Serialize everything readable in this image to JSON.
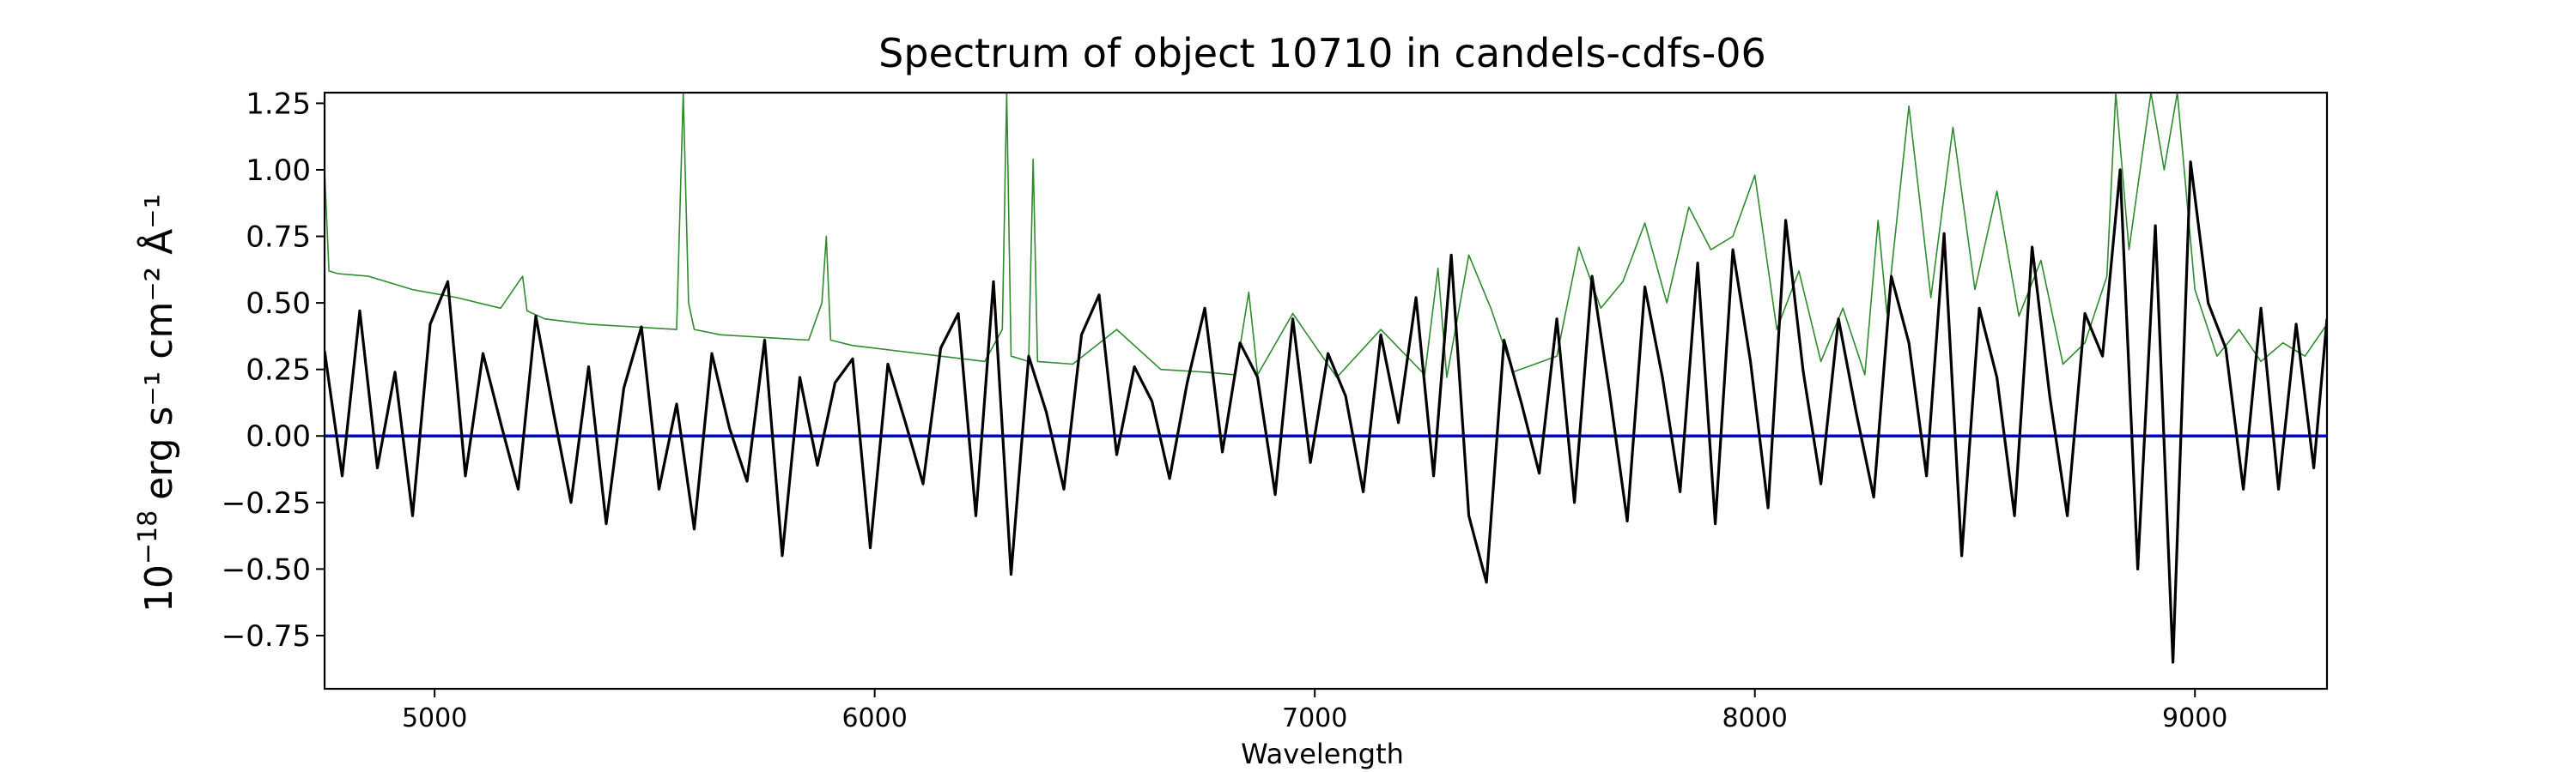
{
  "chart_data": {
    "type": "line",
    "title": "Spectrum of object 10710 in candels-cdfs-06",
    "xlabel": "Wavelength",
    "ylabel_base": "10",
    "ylabel_exp": "−18",
    "ylabel_units": "erg s⁻¹ cm⁻² Å⁻¹",
    "xlim": [
      4750,
      9300
    ],
    "ylim": [
      -0.95,
      1.29
    ],
    "xticks": [
      5000,
      6000,
      7000,
      8000,
      9000
    ],
    "xtick_labels": [
      "5000",
      "6000",
      "7000",
      "8000",
      "9000"
    ],
    "yticks": [
      -0.75,
      -0.5,
      -0.25,
      0.0,
      0.25,
      0.5,
      0.75,
      1.0,
      1.25
    ],
    "ytick_labels": [
      "−0.75",
      "−0.50",
      "−0.25",
      "0.00",
      "0.25",
      "0.50",
      "0.75",
      "1.00",
      "1.25"
    ],
    "grid": false,
    "legend": "none",
    "series": [
      {
        "role": "flux",
        "color": "#000000",
        "x": [
          4750,
          4790,
          4830,
          4870,
          4910,
          4950,
          4990,
          5030,
          5070,
          5110,
          5150,
          5190,
          5230,
          5270,
          5310,
          5350,
          5390,
          5430,
          5470,
          5510,
          5550,
          5590,
          5630,
          5670,
          5710,
          5750,
          5790,
          5830,
          5870,
          5910,
          5950,
          5990,
          6030,
          6070,
          6110,
          6150,
          6190,
          6230,
          6270,
          6310,
          6350,
          6390,
          6430,
          6470,
          6510,
          6550,
          6590,
          6630,
          6670,
          6710,
          6750,
          6790,
          6830,
          6870,
          6910,
          6950,
          6990,
          7030,
          7070,
          7110,
          7150,
          7190,
          7230,
          7270,
          7310,
          7350,
          7390,
          7430,
          7470,
          7510,
          7550,
          7590,
          7630,
          7670,
          7710,
          7750,
          7790,
          7830,
          7870,
          7910,
          7950,
          7990,
          8030,
          8070,
          8110,
          8150,
          8190,
          8230,
          8270,
          8310,
          8350,
          8390,
          8430,
          8470,
          8510,
          8550,
          8590,
          8630,
          8670,
          8710,
          8750,
          8790,
          8830,
          8870,
          8910,
          8950,
          8990,
          9030,
          9070,
          9110,
          9150,
          9190,
          9230,
          9270,
          9300
        ],
        "y": [
          0.32,
          -0.15,
          0.47,
          -0.12,
          0.24,
          -0.3,
          0.42,
          0.58,
          -0.15,
          0.31,
          0.05,
          -0.2,
          0.45,
          0.09,
          -0.25,
          0.26,
          -0.33,
          0.18,
          0.41,
          -0.2,
          0.12,
          -0.35,
          0.31,
          0.03,
          -0.17,
          0.36,
          -0.45,
          0.22,
          -0.11,
          0.2,
          0.29,
          -0.42,
          0.27,
          0.05,
          -0.18,
          0.33,
          0.46,
          -0.3,
          0.58,
          -0.52,
          0.3,
          0.09,
          -0.2,
          0.38,
          0.53,
          -0.07,
          0.26,
          0.13,
          -0.16,
          0.2,
          0.48,
          -0.06,
          0.35,
          0.22,
          -0.22,
          0.44,
          -0.1,
          0.31,
          0.15,
          -0.21,
          0.38,
          0.05,
          0.52,
          -0.15,
          0.68,
          -0.3,
          -0.55,
          0.36,
          0.12,
          -0.14,
          0.44,
          -0.25,
          0.6,
          0.16,
          -0.32,
          0.56,
          0.22,
          -0.21,
          0.65,
          -0.33,
          0.7,
          0.28,
          -0.27,
          0.81,
          0.24,
          -0.18,
          0.44,
          0.09,
          -0.23,
          0.6,
          0.35,
          -0.15,
          0.76,
          -0.45,
          0.48,
          0.22,
          -0.3,
          0.71,
          0.15,
          -0.3,
          0.46,
          0.3,
          1.0,
          -0.5,
          0.79,
          -0.85,
          1.03,
          0.5,
          0.33,
          -0.2,
          0.48,
          -0.2,
          0.42,
          -0.12,
          0.44
        ]
      },
      {
        "role": "error",
        "color": "#2e8b2e",
        "x": [
          4750,
          4760,
          4780,
          4850,
          4950,
          5050,
          5150,
          5200,
          5210,
          5250,
          5350,
          5450,
          5550,
          5565,
          5577,
          5590,
          5650,
          5750,
          5850,
          5880,
          5890,
          5900,
          5950,
          6050,
          6150,
          6250,
          6290,
          6300,
          6310,
          6350,
          6360,
          6370,
          6450,
          6550,
          6650,
          6750,
          6820,
          6850,
          6870,
          6950,
          7050,
          7150,
          7250,
          7280,
          7300,
          7350,
          7400,
          7450,
          7550,
          7600,
          7650,
          7700,
          7750,
          7800,
          7850,
          7900,
          7950,
          8000,
          8050,
          8100,
          8150,
          8200,
          8250,
          8280,
          8300,
          8350,
          8400,
          8450,
          8500,
          8550,
          8600,
          8650,
          8700,
          8750,
          8800,
          8820,
          8850,
          8900,
          8930,
          8960,
          9000,
          9050,
          9100,
          9150,
          9200,
          9250,
          9300
        ],
        "y": [
          1.0,
          0.62,
          0.61,
          0.6,
          0.55,
          0.52,
          0.48,
          0.6,
          0.47,
          0.44,
          0.42,
          0.41,
          0.4,
          1.29,
          0.5,
          0.4,
          0.38,
          0.37,
          0.36,
          0.5,
          0.75,
          0.36,
          0.34,
          0.32,
          0.3,
          0.28,
          0.4,
          1.29,
          0.3,
          0.28,
          1.04,
          0.28,
          0.27,
          0.4,
          0.25,
          0.24,
          0.23,
          0.54,
          0.23,
          0.46,
          0.22,
          0.4,
          0.23,
          0.63,
          0.22,
          0.68,
          0.48,
          0.24,
          0.3,
          0.71,
          0.48,
          0.58,
          0.8,
          0.5,
          0.86,
          0.7,
          0.75,
          0.98,
          0.4,
          0.62,
          0.28,
          0.48,
          0.23,
          0.81,
          0.46,
          1.24,
          0.52,
          1.16,
          0.55,
          0.92,
          0.45,
          0.66,
          0.27,
          0.35,
          0.6,
          1.29,
          0.7,
          1.29,
          1.0,
          1.29,
          0.55,
          0.3,
          0.4,
          0.28,
          0.35,
          0.3,
          0.42
        ]
      },
      {
        "role": "zero-line",
        "color": "#0000dd",
        "x": [
          4750,
          9300
        ],
        "y": [
          0,
          0
        ]
      }
    ]
  }
}
